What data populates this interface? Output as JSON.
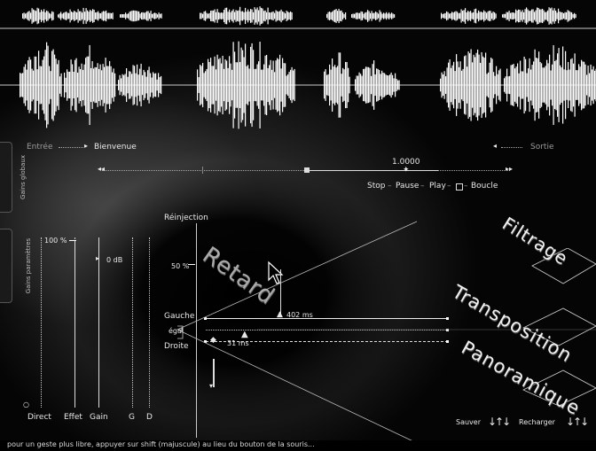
{
  "io": {
    "input_label": "Entrée",
    "input_source": "Bienvenue",
    "output_label": "Sortie"
  },
  "side_tabs": {
    "tab1": "Gains globaux",
    "tab2": "Gains paramètres"
  },
  "transport": {
    "speed_value": "1.0000",
    "stop": "Stop",
    "pause": "Pause",
    "play": "Play",
    "loop": "Boucle"
  },
  "mixer": {
    "reinjection": "Réinjection",
    "reinjection_value": "50 %",
    "direct_level": "100 %",
    "gain_value": "0 dB",
    "direct": "Direct",
    "effet": "Effet",
    "gain": "Gain",
    "g": "G",
    "d": "D"
  },
  "delay": {
    "title": "Retard",
    "gauche": "Gauche",
    "egal": "égal",
    "droite": "Droite",
    "left_value": "402 ms",
    "right_value": "31 ms"
  },
  "effects": {
    "filtrage": "Filtrage",
    "transposition": "Transposition",
    "panoramique": "Panoramique"
  },
  "presets": {
    "save": "Sauver",
    "load": "Recharger"
  },
  "status_hint": "pour un geste plus libre, appuyer sur shift (majuscule) au lieu du bouton de la souris..."
}
